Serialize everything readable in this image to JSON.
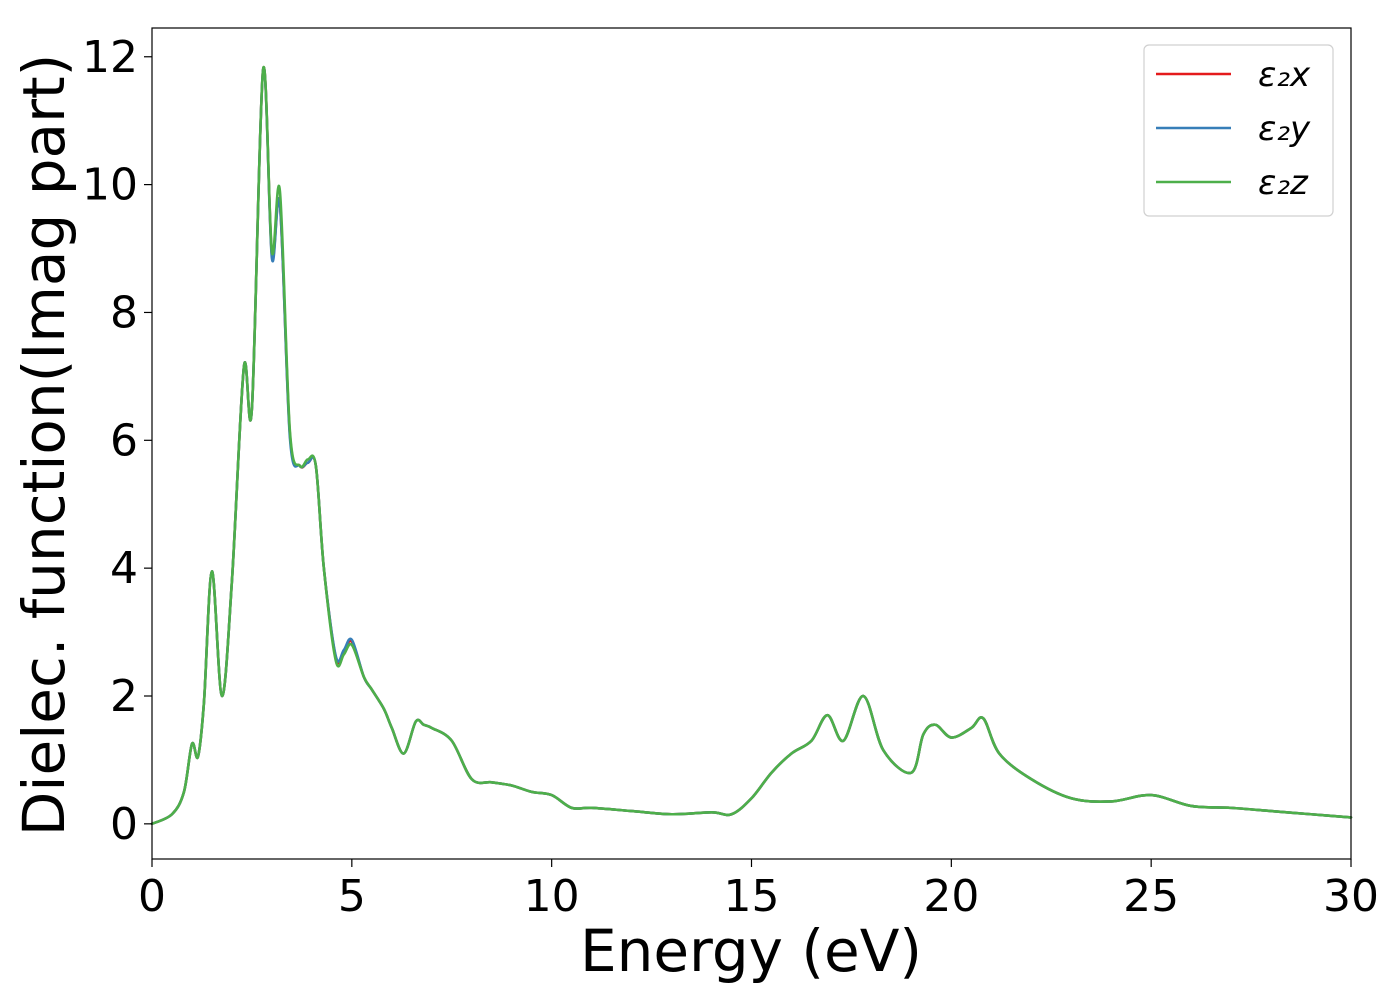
{
  "chart_data": {
    "type": "line",
    "xlabel": "Energy (eV)",
    "ylabel": "Dielec. function(Imag part)",
    "xlim": [
      0,
      30
    ],
    "ylim": [
      -0.55,
      12.45
    ],
    "xticks": [
      "0",
      "5",
      "10",
      "15",
      "20",
      "25",
      "30"
    ],
    "yticks": [
      "0",
      "2",
      "4",
      "6",
      "8",
      "10",
      "12"
    ],
    "grid": false,
    "legend_position": "top-right",
    "series": [
      {
        "name": "ε₂x",
        "color": "#e41a1c",
        "x": [
          0,
          0.5,
          0.8,
          1.0,
          1.15,
          1.3,
          1.5,
          1.75,
          2.0,
          2.3,
          2.5,
          2.78,
          3.0,
          3.2,
          3.45,
          3.7,
          3.9,
          4.1,
          4.3,
          4.6,
          4.8,
          5.0,
          5.3,
          5.5,
          5.8,
          6.0,
          6.3,
          6.6,
          6.8,
          7.0,
          7.5,
          8.0,
          8.5,
          9.0,
          9.5,
          10.0,
          10.5,
          11.0,
          12.0,
          13.0,
          14.0,
          14.5,
          15.0,
          15.5,
          16.0,
          16.5,
          16.9,
          17.3,
          17.8,
          18.3,
          19.0,
          19.3,
          19.6,
          20.0,
          20.5,
          20.8,
          21.2,
          22.0,
          23.0,
          24.0,
          25.0,
          26.0,
          27.0,
          28.0,
          29.0,
          30.0
        ],
        "y": [
          0.0,
          0.15,
          0.5,
          1.25,
          1.05,
          1.9,
          3.95,
          2.0,
          3.8,
          7.15,
          6.5,
          11.8,
          8.9,
          9.7,
          6.1,
          5.6,
          5.65,
          5.6,
          4.0,
          2.6,
          2.7,
          2.85,
          2.3,
          2.1,
          1.8,
          1.5,
          1.1,
          1.6,
          1.55,
          1.5,
          1.3,
          0.7,
          0.65,
          0.6,
          0.5,
          0.45,
          0.25,
          0.25,
          0.2,
          0.15,
          0.18,
          0.15,
          0.4,
          0.8,
          1.1,
          1.3,
          1.7,
          1.3,
          2.0,
          1.15,
          0.8,
          1.4,
          1.55,
          1.35,
          1.5,
          1.65,
          1.1,
          0.7,
          0.4,
          0.35,
          0.45,
          0.28,
          0.25,
          0.2,
          0.15,
          0.1
        ]
      },
      {
        "name": "ε₂y",
        "color": "#377eb8",
        "x": [
          0,
          0.5,
          0.8,
          1.0,
          1.15,
          1.3,
          1.5,
          1.75,
          2.0,
          2.3,
          2.5,
          2.78,
          3.0,
          3.2,
          3.45,
          3.7,
          3.9,
          4.1,
          4.3,
          4.6,
          4.8,
          5.0,
          5.3,
          5.5,
          5.8,
          6.0,
          6.3,
          6.6,
          6.8,
          7.0,
          7.5,
          8.0,
          8.5,
          9.0,
          9.5,
          10.0,
          10.5,
          11.0,
          12.0,
          13.0,
          14.0,
          14.5,
          15.0,
          15.5,
          16.0,
          16.5,
          16.9,
          17.3,
          17.8,
          18.3,
          19.0,
          19.3,
          19.6,
          20.0,
          20.5,
          20.8,
          21.2,
          22.0,
          23.0,
          24.0,
          25.0,
          26.0,
          27.0,
          28.0,
          29.0,
          30.0
        ],
        "y": [
          0.0,
          0.15,
          0.5,
          1.25,
          1.05,
          1.9,
          3.95,
          2.0,
          3.8,
          7.15,
          6.5,
          11.8,
          8.85,
          9.7,
          6.05,
          5.6,
          5.65,
          5.6,
          4.0,
          2.62,
          2.72,
          2.88,
          2.3,
          2.1,
          1.8,
          1.5,
          1.1,
          1.6,
          1.55,
          1.5,
          1.3,
          0.7,
          0.65,
          0.6,
          0.5,
          0.45,
          0.25,
          0.25,
          0.2,
          0.15,
          0.18,
          0.15,
          0.4,
          0.8,
          1.1,
          1.3,
          1.7,
          1.3,
          2.0,
          1.15,
          0.8,
          1.4,
          1.55,
          1.35,
          1.5,
          1.65,
          1.1,
          0.7,
          0.4,
          0.35,
          0.45,
          0.28,
          0.25,
          0.2,
          0.15,
          0.1
        ]
      },
      {
        "name": "ε₂z",
        "color": "#4daf4a",
        "x": [
          0,
          0.5,
          0.8,
          1.0,
          1.15,
          1.3,
          1.5,
          1.75,
          2.0,
          2.3,
          2.5,
          2.78,
          3.0,
          3.2,
          3.45,
          3.7,
          3.9,
          4.1,
          4.3,
          4.6,
          4.8,
          5.0,
          5.3,
          5.5,
          5.8,
          6.0,
          6.3,
          6.6,
          6.8,
          7.0,
          7.5,
          8.0,
          8.5,
          9.0,
          9.5,
          10.0,
          10.5,
          11.0,
          12.0,
          13.0,
          14.0,
          14.5,
          15.0,
          15.5,
          16.0,
          16.5,
          16.9,
          17.3,
          17.8,
          18.3,
          19.0,
          19.3,
          19.6,
          20.0,
          20.5,
          20.8,
          21.2,
          22.0,
          23.0,
          24.0,
          25.0,
          26.0,
          27.0,
          28.0,
          29.0,
          30.0
        ],
        "y": [
          0.0,
          0.15,
          0.5,
          1.25,
          1.05,
          1.9,
          3.95,
          2.0,
          3.8,
          7.15,
          6.5,
          11.8,
          8.95,
          9.9,
          6.15,
          5.6,
          5.7,
          5.6,
          4.0,
          2.55,
          2.65,
          2.8,
          2.3,
          2.1,
          1.8,
          1.5,
          1.1,
          1.6,
          1.55,
          1.5,
          1.3,
          0.7,
          0.65,
          0.6,
          0.5,
          0.45,
          0.25,
          0.25,
          0.2,
          0.15,
          0.18,
          0.15,
          0.4,
          0.8,
          1.1,
          1.3,
          1.7,
          1.3,
          2.0,
          1.15,
          0.8,
          1.4,
          1.55,
          1.35,
          1.5,
          1.65,
          1.1,
          0.7,
          0.4,
          0.35,
          0.45,
          0.28,
          0.25,
          0.2,
          0.15,
          0.1
        ]
      }
    ]
  }
}
